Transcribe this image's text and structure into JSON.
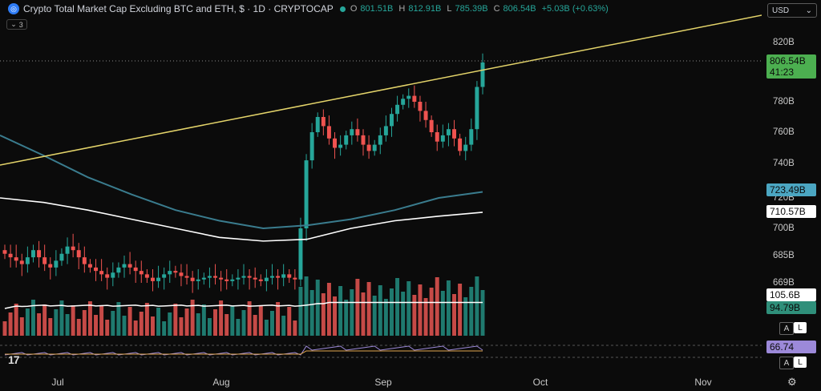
{
  "header": {
    "logo_glyph": "◎",
    "title": "Crypto Total Market Cap Excluding BTC and ETH, $ · 1D · CRYPTOCAP",
    "ohlc": {
      "o_key": "O",
      "o": "801.51B",
      "h_key": "H",
      "h": "812.91B",
      "l_key": "L",
      "l": "785.39B",
      "c_key": "C",
      "c": "806.54B",
      "change": "+5.03B (+0.63%)"
    },
    "currency": "USD",
    "currency_caret": "⌄",
    "collapse_caret": "⌄",
    "indicator_count": "3"
  },
  "price_axis": {
    "ticks": [
      "820B",
      "780B",
      "760B",
      "740B",
      "720B",
      "700B",
      "685B",
      "669B"
    ],
    "current_price": "806.54B",
    "countdown": "41:23",
    "ma_long_value": "723.49B",
    "ma_short_value": "710.57B",
    "volume_ma": "105.6B",
    "volume": "94.79B",
    "rsi": "66.74"
  },
  "time_axis": {
    "labels": [
      "Jul",
      "Aug",
      "Sep",
      "Oct",
      "Nov"
    ]
  },
  "buttons": {
    "auto": "A",
    "log": "L"
  },
  "footer": {
    "brand": "17",
    "settings_glyph": "⚙"
  },
  "colors": {
    "up": "#26a69a",
    "down": "#ef5350",
    "trendline": "#e4d46a",
    "ma_white": "#ffffff",
    "ma_teal": "#3a7c8e",
    "price_badge": "#4caf50",
    "teal_badge": "#4ba6c2",
    "rsi_badge": "#9c89d9"
  },
  "chart_data": {
    "type": "candlestick",
    "y_axis_ticks": [
      820,
      780,
      760,
      740,
      720,
      700,
      685,
      669
    ],
    "last_close": 806.54,
    "approx_closes": [
      686,
      684,
      682,
      680,
      684,
      688,
      684,
      680,
      678,
      682,
      686,
      690,
      688,
      684,
      680,
      678,
      676,
      674,
      672,
      675,
      678,
      680,
      678,
      676,
      674,
      672,
      670,
      672,
      674,
      676,
      675,
      673,
      672,
      670,
      671,
      672,
      673,
      672,
      671,
      670,
      671,
      672,
      673,
      672,
      671,
      670,
      672,
      673,
      672,
      674,
      672,
      671,
      700,
      742,
      760,
      770,
      764,
      756,
      750,
      752,
      758,
      762,
      758,
      752,
      748,
      752,
      758,
      764,
      772,
      778,
      782,
      784,
      780,
      774,
      768,
      760,
      754,
      758,
      762,
      756,
      748,
      752,
      762,
      790,
      806.54
    ],
    "ma_long_approx": [
      758,
      745,
      732,
      722,
      712,
      705,
      700,
      702,
      706,
      712,
      720,
      723.49
    ],
    "ma_short_approx": [
      720,
      717,
      712,
      706,
      700,
      695,
      693,
      694,
      700,
      705,
      708,
      710.57
    ]
  }
}
